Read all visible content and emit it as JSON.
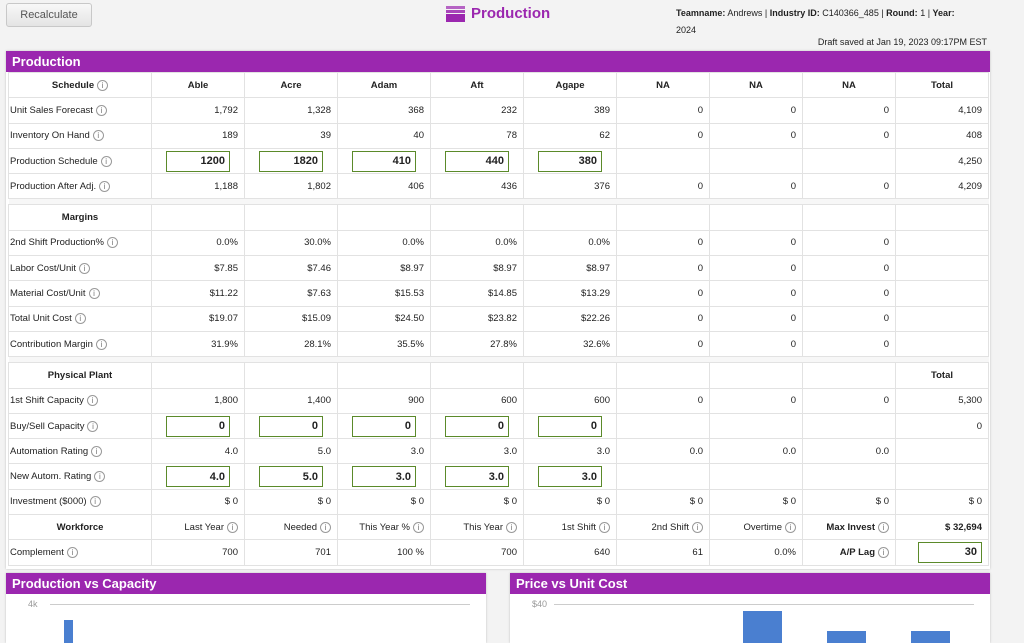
{
  "toolbar": {
    "recalculate": "Recalculate"
  },
  "header": {
    "title": "Production",
    "icon": "stack-icon",
    "team_label": "Teamname:",
    "team": "Andrews",
    "industry_label": "Industry ID:",
    "industry": "C140366_485",
    "round_label": "Round:",
    "round": "1",
    "year_label": "Year:",
    "year": "2024",
    "draft": "Draft saved at Jan 19, 2023 09:17PM EST"
  },
  "colors": {
    "accent": "#9b27af",
    "bar": "#4a7fd0",
    "input_border": "#5b8a2a"
  },
  "panel": {
    "title": "Production"
  },
  "columns": [
    "Able",
    "Acre",
    "Adam",
    "Aft",
    "Agape",
    "NA",
    "NA",
    "NA",
    "Total"
  ],
  "sections": [
    {
      "header": "Schedule",
      "info": true,
      "columns": [
        "Able",
        "Acre",
        "Adam",
        "Aft",
        "Agape",
        "NA",
        "NA",
        "NA",
        "Total"
      ],
      "rows": [
        {
          "label": "Unit Sales Forecast",
          "values": [
            "1,792",
            "1,328",
            "368",
            "232",
            "389",
            "0",
            "0",
            "0",
            "4,109"
          ]
        },
        {
          "label": "Inventory On Hand",
          "values": [
            "189",
            "39",
            "40",
            "78",
            "62",
            "0",
            "0",
            "0",
            "408"
          ]
        },
        {
          "label": "Production Schedule",
          "inputs": [
            "1200",
            "1820",
            "410",
            "440",
            "380"
          ],
          "values": [
            "",
            "",
            "",
            "",
            "",
            "",
            "",
            "",
            "4,250"
          ]
        },
        {
          "label": "Production After Adj.",
          "values": [
            "1,188",
            "1,802",
            "406",
            "436",
            "376",
            "0",
            "0",
            "0",
            "4,209"
          ]
        }
      ]
    },
    {
      "header": "Margins",
      "info": false,
      "columns": [
        "",
        "",
        "",
        "",
        "",
        "",
        "",
        "",
        ""
      ],
      "rows": [
        {
          "label": "2nd Shift Production%",
          "values": [
            "0.0%",
            "30.0%",
            "0.0%",
            "0.0%",
            "0.0%",
            "0",
            "0",
            "0",
            ""
          ]
        },
        {
          "label": "Labor Cost/Unit",
          "values": [
            "$7.85",
            "$7.46",
            "$8.97",
            "$8.97",
            "$8.97",
            "0",
            "0",
            "0",
            ""
          ]
        },
        {
          "label": "Material Cost/Unit",
          "values": [
            "$11.22",
            "$7.63",
            "$15.53",
            "$14.85",
            "$13.29",
            "0",
            "0",
            "0",
            ""
          ]
        },
        {
          "label": "Total Unit Cost",
          "values": [
            "$19.07",
            "$15.09",
            "$24.50",
            "$23.82",
            "$22.26",
            "0",
            "0",
            "0",
            ""
          ]
        },
        {
          "label": "Contribution Margin",
          "values": [
            "31.9%",
            "28.1%",
            "35.5%",
            "27.8%",
            "32.6%",
            "0",
            "0",
            "0",
            ""
          ]
        }
      ]
    },
    {
      "header": "Physical Plant",
      "info": false,
      "columns": [
        "",
        "",
        "",
        "",
        "",
        "",
        "",
        "",
        "Total"
      ],
      "rows": [
        {
          "label": "1st Shift Capacity",
          "values": [
            "1,800",
            "1,400",
            "900",
            "600",
            "600",
            "0",
            "0",
            "0",
            "5,300"
          ]
        },
        {
          "label": "Buy/Sell Capacity",
          "inputs": [
            "0",
            "0",
            "0",
            "0",
            "0"
          ],
          "values": [
            "",
            "",
            "",
            "",
            "",
            "",
            "",
            "",
            "0"
          ]
        },
        {
          "label": "Automation Rating",
          "values": [
            "4.0",
            "5.0",
            "3.0",
            "3.0",
            "3.0",
            "0.0",
            "0.0",
            "0.0",
            ""
          ]
        },
        {
          "label": "New Autom. Rating",
          "inputs": [
            "4.0",
            "5.0",
            "3.0",
            "3.0",
            "3.0"
          ],
          "values": [
            "",
            "",
            "",
            "",
            "",
            "",
            "",
            "",
            ""
          ]
        },
        {
          "label": "Investment ($000)",
          "values": [
            "$ 0",
            "$ 0",
            "$ 0",
            "$ 0",
            "$ 0",
            "$ 0",
            "$ 0",
            "$ 0",
            "$ 0"
          ]
        },
        {
          "label": "Workforce",
          "header": true,
          "values": [
            "Last Year",
            "Needed",
            "This Year %",
            "This Year",
            "1st Shift",
            "2nd Shift",
            "Overtime",
            "Max Invest",
            "$ 32,694"
          ]
        },
        {
          "label": "Complement",
          "values": [
            "700",
            "701",
            "100 %",
            "700",
            "640",
            "61",
            "0.0%",
            "A/P Lag",
            ""
          ],
          "last_input": "30"
        }
      ]
    }
  ],
  "charts": [
    {
      "title": "Production vs Capacity",
      "tick": "4k"
    },
    {
      "title": "Price vs Unit Cost",
      "tick": "$40"
    }
  ]
}
